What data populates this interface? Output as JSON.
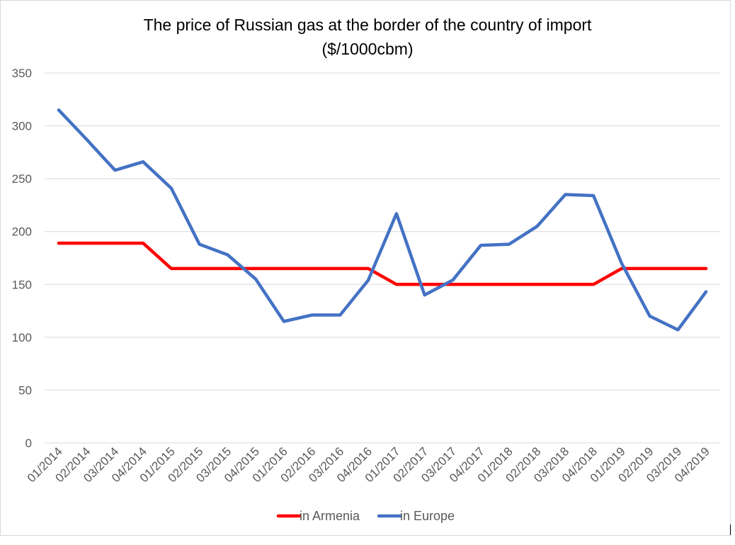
{
  "chart_data": {
    "type": "line",
    "title": "The price of Russian gas at the border of the country of import",
    "subtitle": "($/1000cbm)",
    "xlabel": "",
    "ylabel": "",
    "ylim": [
      0,
      350
    ],
    "yticks": [
      0,
      50,
      100,
      150,
      200,
      250,
      300,
      350
    ],
    "grid": true,
    "legend_position": "bottom",
    "categories": [
      "01/2014",
      "02/2014",
      "03/2014",
      "04/2014",
      "01/2015",
      "02/2015",
      "03/2015",
      "04/2015",
      "01/2016",
      "02/2016",
      "03/2016",
      "04/2016",
      "01/2017",
      "02/2017",
      "03/2017",
      "04/2017",
      "01/2018",
      "02/2018",
      "03/2018",
      "04/2018",
      "01/2019",
      "02/2019",
      "03/2019",
      "04/2019"
    ],
    "series": [
      {
        "name": "in Armenia",
        "color": "#ff0000",
        "values": [
          189,
          189,
          189,
          189,
          165,
          165,
          165,
          165,
          165,
          165,
          165,
          165,
          150,
          150,
          150,
          150,
          150,
          150,
          150,
          150,
          165,
          165,
          165,
          165
        ]
      },
      {
        "name": "in Europe",
        "color": "#4472c4",
        "values": [
          315,
          287,
          258,
          266,
          241,
          188,
          178,
          155,
          115,
          121,
          121,
          154,
          217,
          140,
          154,
          187,
          188,
          205,
          235,
          234,
          170,
          120,
          107,
          143
        ]
      }
    ]
  }
}
